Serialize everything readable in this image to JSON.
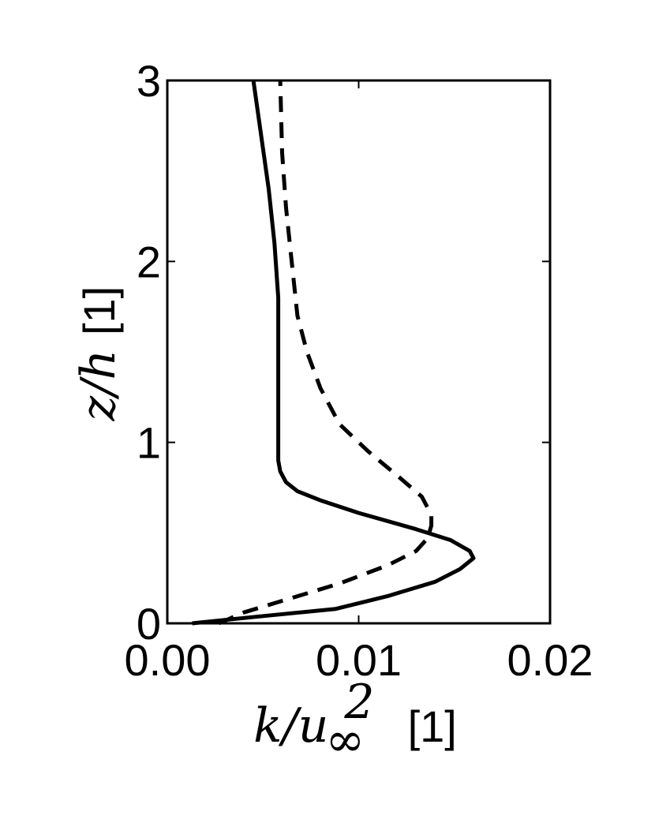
{
  "chart_data": {
    "type": "line",
    "title": "",
    "xlabel": {
      "base": "k/u",
      "subscript": "∞",
      "superscript": "2",
      "unit": "[1]"
    },
    "ylabel": {
      "text": "z/h",
      "unit": "[1]"
    },
    "xlim": [
      0.0,
      0.02
    ],
    "ylim": [
      0,
      3
    ],
    "xticks": [
      0.0,
      0.01,
      0.02
    ],
    "xtick_labels": [
      "0.00",
      "0.01",
      "0.02"
    ],
    "yticks": [
      0,
      1,
      2,
      3
    ],
    "ytick_labels": [
      "0",
      "1",
      "2",
      "3"
    ],
    "grid": false,
    "series": [
      {
        "style": "solid",
        "color": "#000000",
        "points": [
          [
            0.0013,
            0.0
          ],
          [
            0.005,
            0.04
          ],
          [
            0.0088,
            0.08
          ],
          [
            0.0115,
            0.15
          ],
          [
            0.014,
            0.23
          ],
          [
            0.0153,
            0.3
          ],
          [
            0.016,
            0.36
          ],
          [
            0.0158,
            0.4
          ],
          [
            0.0148,
            0.46
          ],
          [
            0.013,
            0.52
          ],
          [
            0.01,
            0.61
          ],
          [
            0.008,
            0.68
          ],
          [
            0.0068,
            0.73
          ],
          [
            0.0062,
            0.78
          ],
          [
            0.0059,
            0.84
          ],
          [
            0.0058,
            0.9
          ],
          [
            0.0058,
            1.0
          ],
          [
            0.0058,
            1.2
          ],
          [
            0.0058,
            1.5
          ],
          [
            0.0058,
            1.8
          ],
          [
            0.0056,
            2.1
          ],
          [
            0.0053,
            2.4
          ],
          [
            0.0049,
            2.7
          ],
          [
            0.0045,
            3.0
          ]
        ]
      },
      {
        "style": "dashed",
        "color": "#000000",
        "points": [
          [
            0.0027,
            0.0
          ],
          [
            0.004,
            0.06
          ],
          [
            0.0065,
            0.14
          ],
          [
            0.009,
            0.22
          ],
          [
            0.0115,
            0.32
          ],
          [
            0.013,
            0.4
          ],
          [
            0.0136,
            0.47
          ],
          [
            0.0138,
            0.54
          ],
          [
            0.0138,
            0.6
          ],
          [
            0.0133,
            0.7
          ],
          [
            0.0122,
            0.8
          ],
          [
            0.0105,
            0.95
          ],
          [
            0.009,
            1.1
          ],
          [
            0.008,
            1.3
          ],
          [
            0.0073,
            1.5
          ],
          [
            0.0068,
            1.7
          ],
          [
            0.0065,
            2.0
          ],
          [
            0.0062,
            2.3
          ],
          [
            0.006,
            2.6
          ],
          [
            0.0059,
            3.0
          ]
        ]
      }
    ]
  }
}
